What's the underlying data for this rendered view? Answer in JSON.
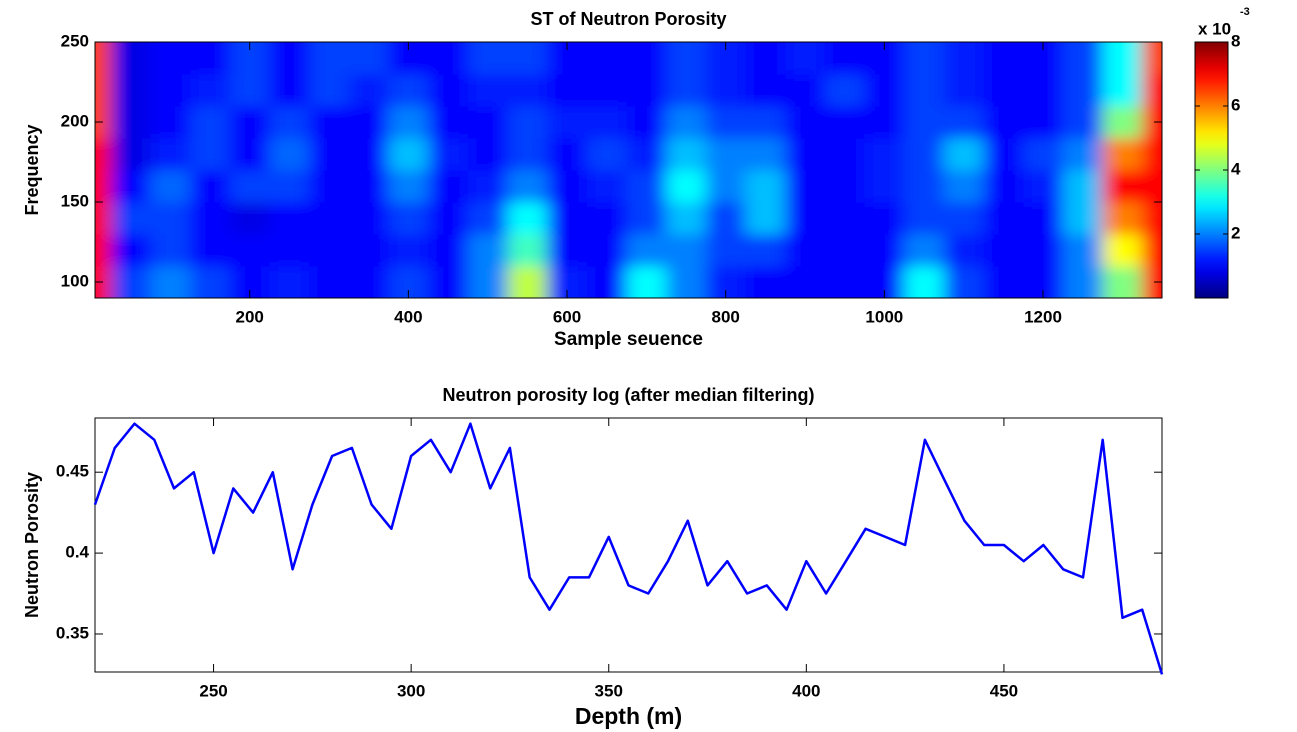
{
  "chart_data": [
    {
      "type": "heatmap",
      "title": "ST of Neutron Porosity",
      "title_color": "#a0411a",
      "xlabel": "Sample seuence",
      "ylabel": "Frequency",
      "colormap": "jet",
      "x": [
        0,
        50,
        100,
        150,
        200,
        250,
        300,
        350,
        400,
        450,
        500,
        550,
        600,
        650,
        700,
        750,
        800,
        850,
        900,
        950,
        1000,
        1050,
        1100,
        1150,
        1200,
        1250,
        1300,
        1350
      ],
      "y": [
        100,
        120,
        140,
        160,
        180,
        200,
        220,
        240
      ],
      "z": [
        [
          7,
          1.5,
          2,
          1.5,
          1,
          1.2,
          1,
          1,
          1.5,
          1,
          2,
          4.5,
          1.2,
          1,
          3,
          2,
          1.2,
          1,
          1,
          1,
          1,
          3,
          1.5,
          1,
          1,
          2,
          4,
          7
        ],
        [
          7,
          1,
          1.5,
          1,
          1,
          1,
          1,
          1,
          1.2,
          1,
          2,
          3.5,
          1,
          1,
          2,
          2,
          1.5,
          1.5,
          1,
          1,
          1,
          2,
          1.2,
          1,
          1,
          2,
          5,
          7
        ],
        [
          7,
          1.5,
          1.5,
          1,
          0.8,
          1,
          1,
          1,
          1.5,
          1,
          1.5,
          3,
          1,
          1,
          1.5,
          2.5,
          1.5,
          2.5,
          1,
          1,
          1,
          1.5,
          1.5,
          1,
          1,
          2.5,
          6,
          7
        ],
        [
          7,
          1,
          1.8,
          1,
          1.5,
          1.5,
          1,
          1,
          2,
          1,
          1.2,
          2,
          1,
          1.2,
          1.5,
          3,
          2,
          2.5,
          1,
          1,
          1.2,
          1.5,
          2,
          1,
          1.2,
          2.5,
          7,
          7
        ],
        [
          7,
          0.8,
          1.2,
          1.5,
          1,
          1.8,
          1,
          1,
          2.5,
          1.2,
          1,
          1.5,
          1,
          1.5,
          1.2,
          2.5,
          2,
          2,
          1,
          1,
          1.2,
          1.5,
          2.5,
          1,
          1.5,
          2,
          6,
          7
        ],
        [
          6.5,
          0.8,
          1,
          1.5,
          1,
          1.5,
          1,
          1,
          2,
          1,
          1,
          1.5,
          1.2,
          1.2,
          1,
          2,
          1.5,
          1.5,
          1,
          1,
          1,
          1.5,
          1.5,
          1,
          1,
          1.5,
          4,
          7
        ],
        [
          6.5,
          0.8,
          1,
          1.2,
          1.5,
          1,
          1.5,
          1.2,
          1.5,
          1,
          1.2,
          1.2,
          1,
          1,
          1,
          1.5,
          1.2,
          1,
          1,
          1.5,
          1,
          1.5,
          1.2,
          1,
          1,
          1.5,
          3,
          7
        ],
        [
          6.5,
          0.8,
          1,
          1,
          1.5,
          1,
          1.5,
          1.5,
          1,
          1,
          1.5,
          1.5,
          1,
          1,
          1,
          1.5,
          1.2,
          1,
          1.2,
          1,
          1,
          1.5,
          1.2,
          1,
          1,
          1.5,
          3,
          6.5
        ]
      ],
      "xlim": [
        5,
        1350
      ],
      "ylim": [
        90,
        250
      ],
      "xticks": [
        200,
        400,
        600,
        800,
        1000,
        1200
      ],
      "yticks": [
        100,
        150,
        200,
        250
      ],
      "colorbar": {
        "lim": [
          0,
          8
        ],
        "ticks": [
          2,
          4,
          6,
          8
        ],
        "label": "x 10",
        "exponent": "-3"
      }
    },
    {
      "type": "line",
      "title": "Neutron porosity log (after median filtering)",
      "title_color": "#008000",
      "xlabel": "Depth (m)",
      "ylabel": "Neutron Porosity",
      "color": "#0000ff",
      "x": [
        220,
        225,
        230,
        235,
        240,
        245,
        250,
        255,
        260,
        265,
        270,
        275,
        280,
        285,
        290,
        295,
        300,
        305,
        310,
        315,
        320,
        325,
        330,
        335,
        340,
        345,
        350,
        355,
        360,
        365,
        370,
        375,
        380,
        385,
        390,
        395,
        400,
        405,
        410,
        415,
        420,
        425,
        430,
        435,
        440,
        445,
        450,
        455,
        460,
        465,
        470,
        475,
        480,
        485,
        490
      ],
      "values": [
        0.43,
        0.465,
        0.48,
        0.47,
        0.44,
        0.45,
        0.4,
        0.44,
        0.425,
        0.45,
        0.39,
        0.43,
        0.46,
        0.465,
        0.43,
        0.415,
        0.46,
        0.47,
        0.45,
        0.48,
        0.44,
        0.465,
        0.385,
        0.365,
        0.385,
        0.385,
        0.41,
        0.38,
        0.375,
        0.395,
        0.42,
        0.38,
        0.395,
        0.375,
        0.38,
        0.365,
        0.395,
        0.375,
        0.395,
        0.415,
        0.41,
        0.405,
        0.47,
        0.445,
        0.42,
        0.405,
        0.405,
        0.395,
        0.405,
        0.39,
        0.385,
        0.47,
        0.36,
        0.365,
        0.325
      ],
      "xlim": [
        220,
        490
      ],
      "ylim": [
        0.3265,
        0.4835
      ],
      "xticks": [
        250,
        300,
        350,
        400,
        450
      ],
      "yticks": [
        0.35,
        0.4,
        0.45
      ]
    }
  ]
}
